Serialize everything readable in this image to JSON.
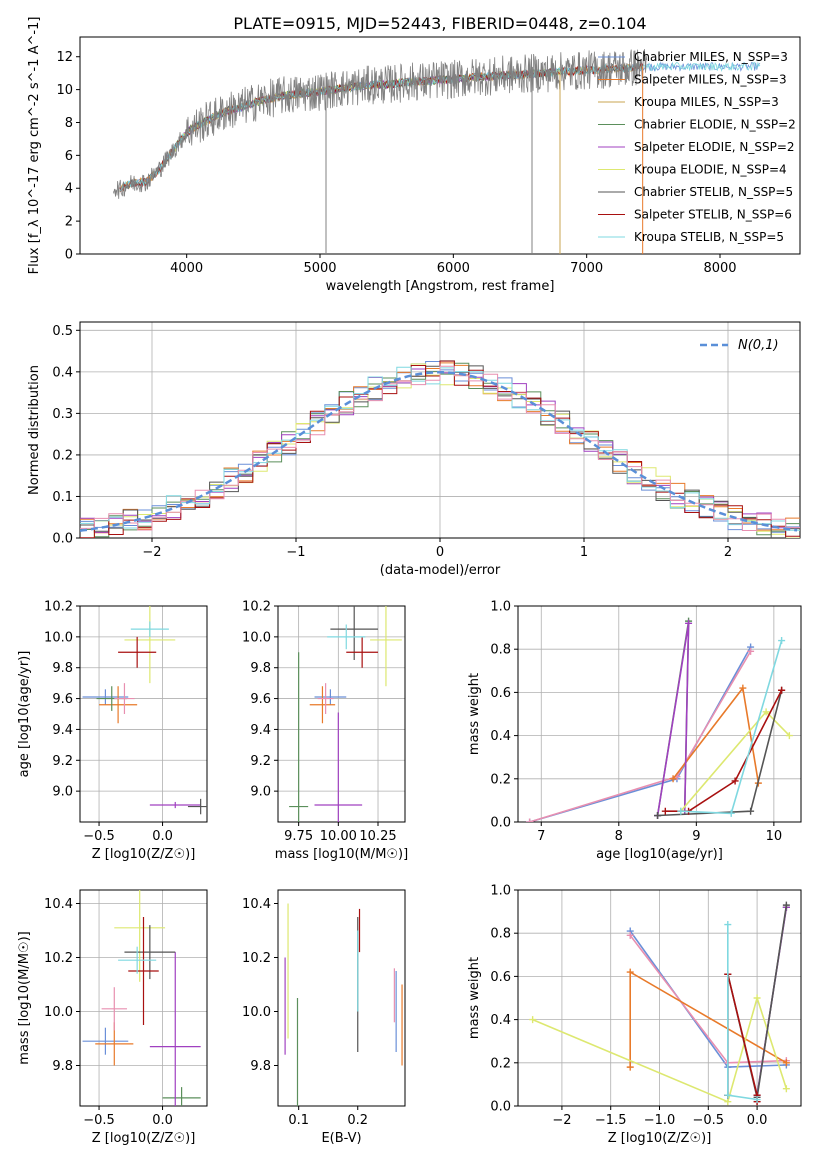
{
  "figure": {
    "title": "PLATE=0915, MJD=52443, FIBERID=0448, z=0.104"
  },
  "series_colors": [
    "#6a8fd8",
    "#e87a2a",
    "#caa650",
    "#5b8f5b",
    "#a040c0",
    "#dde870",
    "#555555",
    "#a81010",
    "#7fd8e0",
    "#e88fb0"
  ],
  "chart_data": [
    {
      "id": "spectrum",
      "type": "line",
      "title": "PLATE=0915, MJD=52443, FIBERID=0448, z=0.104",
      "xlabel": "wavelength [Angstrom, rest frame]",
      "ylabel": "Flux [f_λ 10^-17 erg cm^-2 s^-1 A^-1]",
      "xlim": [
        3200,
        8600
      ],
      "ylim": [
        0,
        13.2
      ],
      "xticks": [
        4000,
        5000,
        6000,
        7000,
        8000
      ],
      "yticks": [
        0,
        2,
        4,
        6,
        8,
        10,
        12
      ],
      "grid": false,
      "legend_position": "top-right",
      "data_color": "#808080",
      "data_x": [
        3450,
        3500,
        3550,
        3600,
        3700,
        3800,
        3900,
        4000,
        4100,
        4200,
        4300,
        4400,
        4500,
        4600,
        4700,
        4800,
        4900,
        5000,
        5100,
        5200,
        5300,
        5400,
        5500,
        5600,
        5700,
        5800,
        5900,
        6000,
        6100,
        6200,
        6300,
        6400,
        6500,
        6600,
        6700,
        6800,
        6900,
        7000,
        7100,
        7200,
        7300,
        7400,
        7450
      ],
      "data_y": [
        4.1,
        3.9,
        4.2,
        4.3,
        4.4,
        5.2,
        6.3,
        7.4,
        7.9,
        8.3,
        8.7,
        8.9,
        9.2,
        9.4,
        9.6,
        9.7,
        9.8,
        9.9,
        10.0,
        10.1,
        10.2,
        10.3,
        10.3,
        10.4,
        10.5,
        10.5,
        10.6,
        10.6,
        10.7,
        10.8,
        10.8,
        10.9,
        10.9,
        11.0,
        11.0,
        11.1,
        11.1,
        11.2,
        11.2,
        11.3,
        11.3,
        11.4,
        11.4
      ],
      "series": [
        {
          "name": "Chabrier MILES, N_SSP=3",
          "color": "#6a8fd8",
          "x_range": [
            3500,
            8300
          ]
        },
        {
          "name": "Salpeter MILES, N_SSP=3",
          "color": "#e87a2a",
          "x_range": [
            3500,
            7420
          ]
        },
        {
          "name": "Kroupa MILES, N_SSP=3",
          "color": "#caa650",
          "x_range": [
            3500,
            7420
          ]
        },
        {
          "name": "Chabrier ELODIE, N_SSP=2",
          "color": "#5b8f5b",
          "x_range": [
            3900,
            6800
          ]
        },
        {
          "name": "Salpeter ELODIE, N_SSP=2",
          "color": "#a040c0",
          "x_range": [
            3900,
            6800
          ]
        },
        {
          "name": "Kroupa ELODIE, N_SSP=4",
          "color": "#dde870",
          "x_range": [
            3900,
            6800
          ]
        },
        {
          "name": "Chabrier STELIB, N_SSP=5",
          "color": "#555555",
          "x_range": [
            3500,
            7420
          ]
        },
        {
          "name": "Salpeter STELIB, N_SSP=6",
          "color": "#a81010",
          "x_range": [
            3500,
            7420
          ]
        },
        {
          "name": "Kroupa STELIB, N_SSP=5",
          "color": "#7fd8e0",
          "x_range": [
            3500,
            8300
          ]
        }
      ]
    },
    {
      "id": "residuals",
      "type": "line",
      "xlabel": "(data-model)/error",
      "ylabel": "Normed distribution",
      "xlim": [
        -2.5,
        2.5
      ],
      "ylim": [
        0,
        0.52
      ],
      "xticks": [
        -2,
        -1,
        0,
        1,
        2
      ],
      "yticks": [
        0.0,
        0.1,
        0.2,
        0.3,
        0.4,
        0.5
      ],
      "grid": true,
      "legend_position": "top-right",
      "reference": {
        "name": "N(0,1)",
        "color": "#5a8fd8",
        "style": "dashed"
      },
      "bin_width": 0.1,
      "histogram_colors": [
        "#6a8fd8",
        "#e87a2a",
        "#5b8f5b",
        "#a040c0",
        "#dde870",
        "#555555",
        "#a81010",
        "#7fd8e0",
        "#e88fb0"
      ]
    },
    {
      "id": "age-vs-Z",
      "type": "scatter",
      "xlabel": "Z [log10(Z/Z☉)]",
      "ylabel": "age [log10(age/yr)]",
      "xlim": [
        -0.65,
        0.35
      ],
      "ylim": [
        8.8,
        10.2
      ],
      "xticks": [
        -0.5,
        0.0
      ],
      "yticks": [
        9.0,
        9.2,
        9.4,
        9.6,
        9.8,
        10.0,
        10.2
      ],
      "grid": true,
      "points": [
        {
          "color": "#6a8fd8",
          "x": -0.45,
          "y": 9.61,
          "xerr": 0.18,
          "yerr": 0.05
        },
        {
          "color": "#e87a2a",
          "x": -0.35,
          "y": 9.56,
          "xerr": 0.15,
          "yerr": 0.12
        },
        {
          "color": "#5b8f5b",
          "x": -0.4,
          "y": 9.6,
          "xerr": 0.12,
          "yerr": 0.08
        },
        {
          "color": "#a040c0",
          "x": 0.1,
          "y": 8.91,
          "xerr": 0.2,
          "yerr": 0.02
        },
        {
          "color": "#dde870",
          "x": -0.1,
          "y": 9.98,
          "xerr": 0.2,
          "yerr": 0.28
        },
        {
          "color": "#555555",
          "x": 0.3,
          "y": 8.9,
          "xerr": 0.1,
          "yerr": 0.05
        },
        {
          "color": "#a81010",
          "x": -0.2,
          "y": 9.9,
          "xerr": 0.15,
          "yerr": 0.1
        },
        {
          "color": "#7fd8e0",
          "x": -0.1,
          "y": 10.05,
          "xerr": 0.15,
          "yerr": 0.05
        },
        {
          "color": "#e88fb0",
          "x": -0.3,
          "y": 9.6,
          "xerr": 0.08,
          "yerr": 0.1
        }
      ]
    },
    {
      "id": "age-vs-mass",
      "type": "scatter",
      "xlabel": "mass [log10(M/M☉)]",
      "ylabel": "",
      "xlim": [
        9.62,
        10.42
      ],
      "ylim": [
        8.8,
        10.2
      ],
      "xticks": [
        9.75,
        10.0,
        10.25
      ],
      "xtick_labels": [
        "9.75",
        "10.00",
        "10.25"
      ],
      "yticks": [
        9.0,
        9.2,
        9.4,
        9.6,
        9.8,
        10.0,
        10.2
      ],
      "grid": true,
      "points": [
        {
          "color": "#6a8fd8",
          "x": 9.95,
          "y": 9.61,
          "xerr": 0.1,
          "yerr": 0.05
        },
        {
          "color": "#e87a2a",
          "x": 9.9,
          "y": 9.56,
          "xerr": 0.08,
          "yerr": 0.12
        },
        {
          "color": "#5b8f5b",
          "x": 9.75,
          "y": 8.9,
          "xerr": 0.06,
          "yerr": 1.0
        },
        {
          "color": "#a040c0",
          "x": 10.0,
          "y": 8.91,
          "xerr": 0.15,
          "yerr": 0.6
        },
        {
          "color": "#dde870",
          "x": 10.3,
          "y": 9.98,
          "xerr": 0.1,
          "yerr": 0.3
        },
        {
          "color": "#555555",
          "x": 10.1,
          "y": 10.05,
          "xerr": 0.15,
          "yerr": 0.2
        },
        {
          "color": "#a81010",
          "x": 10.15,
          "y": 9.9,
          "xerr": 0.1,
          "yerr": 0.1
        },
        {
          "color": "#7fd8e0",
          "x": 10.05,
          "y": 10.0,
          "xerr": 0.12,
          "yerr": 0.08
        },
        {
          "color": "#e88fb0",
          "x": 9.92,
          "y": 9.6,
          "xerr": 0.05,
          "yerr": 0.1
        }
      ]
    },
    {
      "id": "weight-vs-age",
      "type": "line",
      "xlabel": "age [log10(age/yr)]",
      "ylabel": "mass weight",
      "xlim": [
        6.7,
        10.35
      ],
      "ylim": [
        0,
        1
      ],
      "xticks": [
        7,
        8,
        9,
        10
      ],
      "yticks": [
        0.0,
        0.2,
        0.4,
        0.6,
        0.8,
        1.0
      ],
      "grid": true,
      "series": [
        {
          "color": "#6a8fd8",
          "x": [
            6.85,
            8.75,
            9.7
          ],
          "y": [
            0.0,
            0.2,
            0.81
          ]
        },
        {
          "color": "#e88fb0",
          "x": [
            6.85,
            8.75,
            9.7
          ],
          "y": [
            0.0,
            0.21,
            0.79
          ]
        },
        {
          "color": "#e87a2a",
          "x": [
            8.7,
            9.6,
            9.8
          ],
          "y": [
            0.2,
            0.62,
            0.18
          ]
        },
        {
          "color": "#5b8f5b",
          "x": [
            8.5,
            8.9,
            8.85
          ],
          "y": [
            0.03,
            0.93,
            0.05
          ]
        },
        {
          "color": "#a040c0",
          "x": [
            8.5,
            8.9,
            8.85
          ],
          "y": [
            0.03,
            0.92,
            0.05
          ]
        },
        {
          "color": "#dde870",
          "x": [
            8.8,
            9.9,
            10.2
          ],
          "y": [
            0.05,
            0.51,
            0.4
          ]
        },
        {
          "color": "#555555",
          "x": [
            8.5,
            9.7,
            10.1
          ],
          "y": [
            0.03,
            0.05,
            0.61
          ]
        },
        {
          "color": "#a81010",
          "x": [
            8.6,
            8.9,
            9.5,
            10.1
          ],
          "y": [
            0.05,
            0.05,
            0.19,
            0.61
          ]
        },
        {
          "color": "#7fd8e0",
          "x": [
            8.8,
            9.45,
            10.1
          ],
          "y": [
            0.05,
            0.04,
            0.84
          ]
        }
      ]
    },
    {
      "id": "mass-vs-Z",
      "type": "scatter",
      "xlabel": "Z [log10(Z/Z☉)]",
      "ylabel": "mass [log10(M/M☉)]",
      "xlim": [
        -0.65,
        0.35
      ],
      "ylim": [
        9.65,
        10.45
      ],
      "xticks": [
        -0.5,
        0.0
      ],
      "yticks": [
        9.8,
        10.0,
        10.2,
        10.4
      ],
      "grid": true,
      "points": [
        {
          "color": "#6a8fd8",
          "x": -0.45,
          "y": 9.89,
          "xerr": 0.18,
          "yerr": 0.05
        },
        {
          "color": "#e87a2a",
          "x": -0.38,
          "y": 9.88,
          "xerr": 0.15,
          "yerr": 0.08
        },
        {
          "color": "#5b8f5b",
          "x": 0.15,
          "y": 9.68,
          "xerr": 0.15,
          "yerr": 0.04
        },
        {
          "color": "#a040c0",
          "x": 0.1,
          "y": 9.87,
          "xerr": 0.2,
          "yerr": 0.35
        },
        {
          "color": "#dde870",
          "x": -0.18,
          "y": 10.31,
          "xerr": 0.2,
          "yerr": 0.2
        },
        {
          "color": "#555555",
          "x": -0.1,
          "y": 10.22,
          "xerr": 0.2,
          "yerr": 0.1
        },
        {
          "color": "#a81010",
          "x": -0.15,
          "y": 10.15,
          "xerr": 0.12,
          "yerr": 0.2
        },
        {
          "color": "#7fd8e0",
          "x": -0.2,
          "y": 10.19,
          "xerr": 0.15,
          "yerr": 0.05
        },
        {
          "color": "#e88fb0",
          "x": -0.38,
          "y": 10.01,
          "xerr": 0.1,
          "yerr": 0.08
        }
      ]
    },
    {
      "id": "mass-vs-EBV",
      "type": "scatter",
      "xlabel": "E(B-V)",
      "ylabel": "",
      "xlim": [
        0.065,
        0.28
      ],
      "ylim": [
        9.65,
        10.45
      ],
      "xticks": [
        0.1,
        0.2
      ],
      "yticks": [
        9.8,
        10.0,
        10.2,
        10.4
      ],
      "grid": false,
      "points": [
        {
          "color": "#6a8fd8",
          "x": 0.265,
          "y": 10.0,
          "yerr": 0.15
        },
        {
          "color": "#e87a2a",
          "x": 0.275,
          "y": 9.95,
          "yerr": 0.15
        },
        {
          "color": "#5b8f5b",
          "x": 0.098,
          "y": 9.85,
          "yerr": 0.2
        },
        {
          "color": "#a040c0",
          "x": 0.077,
          "y": 10.02,
          "yerr": 0.18
        },
        {
          "color": "#dde870",
          "x": 0.082,
          "y": 10.15,
          "yerr": 0.25
        },
        {
          "color": "#555555",
          "x": 0.2,
          "y": 10.1,
          "yerr": 0.25
        },
        {
          "color": "#a81010",
          "x": 0.203,
          "y": 10.3,
          "yerr": 0.08
        },
        {
          "color": "#7fd8e0",
          "x": 0.2,
          "y": 10.15,
          "yerr": 0.15
        },
        {
          "color": "#e88fb0",
          "x": 0.262,
          "y": 10.06,
          "yerr": 0.1
        }
      ]
    },
    {
      "id": "weight-vs-Z",
      "type": "line",
      "xlabel": "Z [log10(Z/Z☉)]",
      "ylabel": "mass weight",
      "xlim": [
        -2.45,
        0.45
      ],
      "ylim": [
        0,
        1
      ],
      "xticks": [
        -2.0,
        -1.5,
        -1.0,
        -0.5,
        0.0
      ],
      "yticks": [
        0.0,
        0.2,
        0.4,
        0.6,
        0.8,
        1.0
      ],
      "grid": true,
      "series": [
        {
          "color": "#6a8fd8",
          "x": [
            -1.3,
            -0.3,
            0.3
          ],
          "y": [
            0.81,
            0.18,
            0.19
          ]
        },
        {
          "color": "#e88fb0",
          "x": [
            -1.3,
            -0.3,
            0.3
          ],
          "y": [
            0.79,
            0.2,
            0.21
          ]
        },
        {
          "color": "#e87a2a",
          "x": [
            -1.3,
            -1.3,
            0.3
          ],
          "y": [
            0.18,
            0.62,
            0.2
          ]
        },
        {
          "color": "#5b8f5b",
          "x": [
            0.0,
            0.3,
            0.3
          ],
          "y": [
            0.05,
            0.92,
            0.92
          ]
        },
        {
          "color": "#a040c0",
          "x": [
            0.0,
            0.3
          ],
          "y": [
            0.05,
            0.92
          ]
        },
        {
          "color": "#dde870",
          "x": [
            -2.3,
            -0.3,
            0.0,
            0.3
          ],
          "y": [
            0.4,
            0.02,
            0.5,
            0.08
          ]
        },
        {
          "color": "#555555",
          "x": [
            -0.3,
            -0.3,
            0.0,
            0.3
          ],
          "y": [
            0.05,
            0.61,
            0.04,
            0.93
          ]
        },
        {
          "color": "#a81010",
          "x": [
            -0.3,
            -0.3,
            0.0,
            0.0
          ],
          "y": [
            0.05,
            0.61,
            0.05,
            0.02
          ]
        },
        {
          "color": "#7fd8e0",
          "x": [
            -0.3,
            -0.3,
            0.0
          ],
          "y": [
            0.84,
            0.05,
            0.03
          ]
        }
      ]
    }
  ]
}
